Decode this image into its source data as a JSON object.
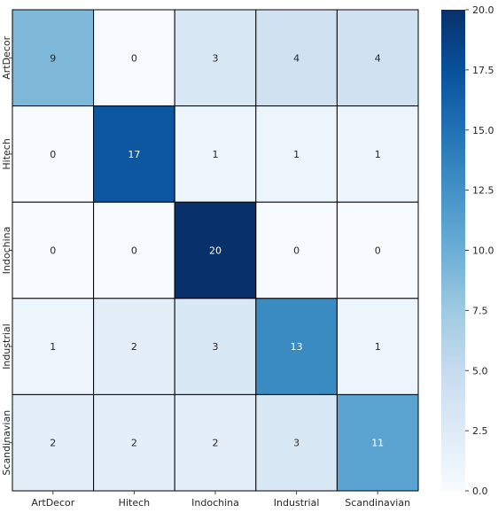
{
  "chart_data": {
    "type": "heatmap",
    "title": "",
    "xlabel": "",
    "ylabel": "",
    "x_categories": [
      "ArtDecor",
      "Hitech",
      "Indochina",
      "Industrial",
      "Scandinavian"
    ],
    "y_categories": [
      "ArtDecor",
      "Hitech",
      "Indochina",
      "Industrial",
      "Scandinavian"
    ],
    "matrix": [
      [
        9,
        0,
        3,
        4,
        4
      ],
      [
        0,
        17,
        1,
        1,
        1
      ],
      [
        0,
        0,
        20,
        0,
        0
      ],
      [
        1,
        2,
        3,
        13,
        1
      ],
      [
        2,
        2,
        2,
        3,
        11
      ]
    ],
    "colormap": "Blues",
    "vmin": 0,
    "vmax": 20,
    "colorbar": {
      "ticks": [
        0.0,
        2.5,
        5.0,
        7.5,
        10.0,
        12.5,
        15.0,
        17.5,
        20.0
      ],
      "tick_labels": [
        "0.0",
        "2.5",
        "5.0",
        "7.5",
        "10.0",
        "12.5",
        "15.0",
        "17.5",
        "20.0"
      ]
    },
    "colors": {
      "cell_border": "#000000",
      "dark_text": "#262626",
      "light_text": "#ffffff",
      "tick_color": "#404040"
    }
  }
}
